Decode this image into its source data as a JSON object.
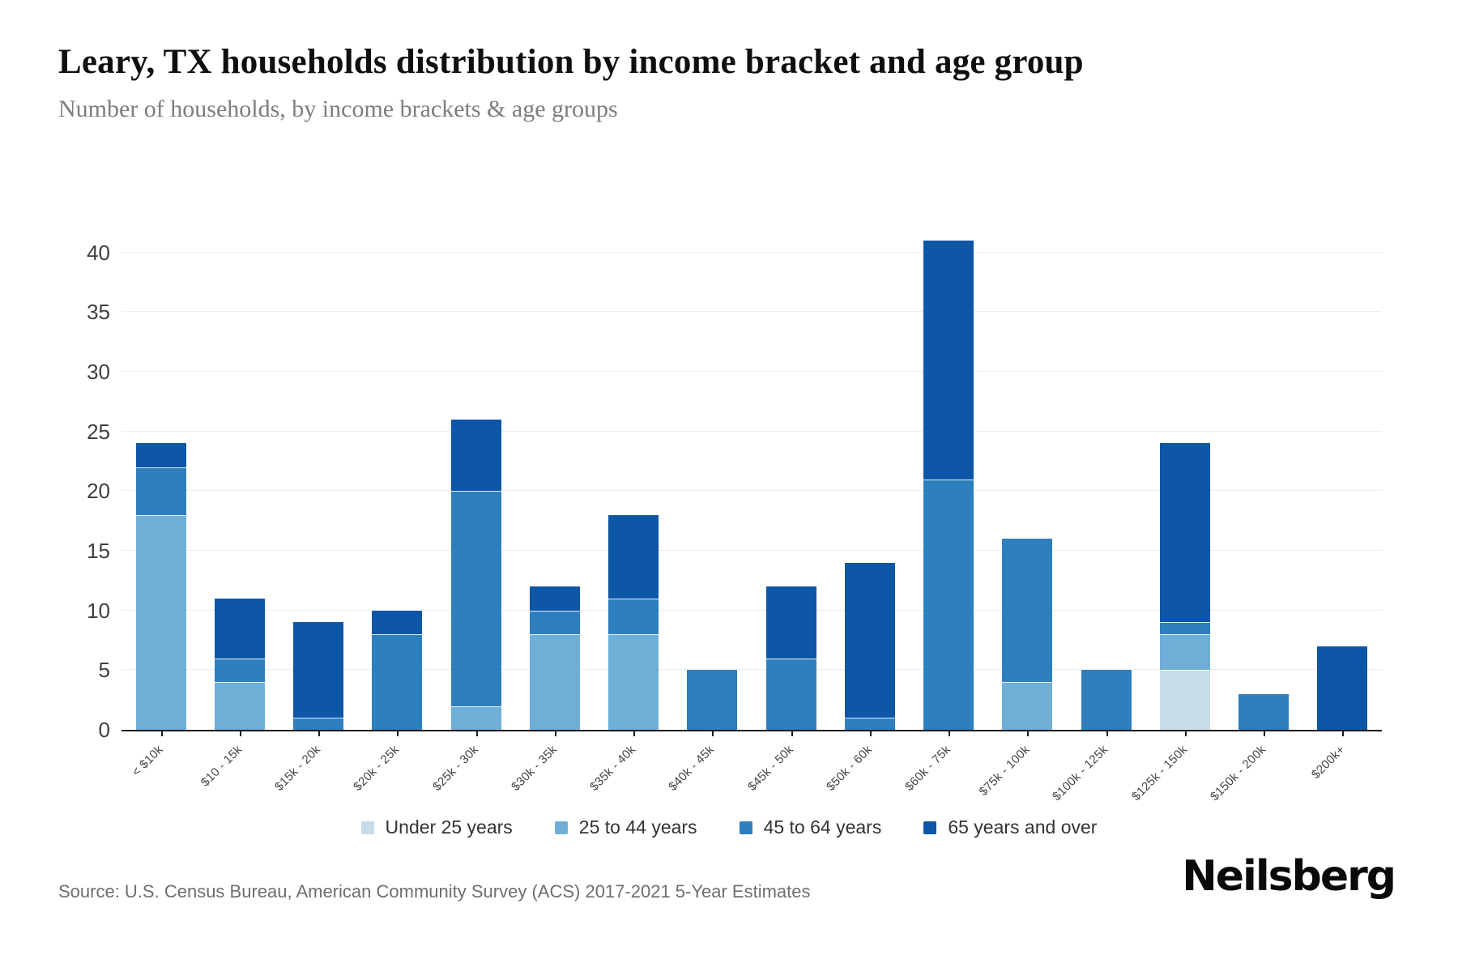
{
  "header": {
    "title": "Leary, TX households distribution by income bracket and age group",
    "subtitle": "Number of households, by income brackets & age groups"
  },
  "chart_data": {
    "type": "bar",
    "stacked": true,
    "title": "Leary, TX households distribution by income bracket and age group",
    "xlabel": "",
    "ylabel": "Number of households",
    "categories": [
      "< $10k",
      "$10 - 15k",
      "$15k - 20k",
      "$20k - 25k",
      "$25k - 30k",
      "$30k - 35k",
      "$35k - 40k",
      "$40k - 45k",
      "$45k - 50k",
      "$50k - 60k",
      "$60k - 75k",
      "$75k - 100k",
      "$100k - 125k",
      "$125k - 150k",
      "$150k - 200k",
      "$200k+"
    ],
    "series": [
      {
        "name": "Under 25 years",
        "color": "#c6dcea",
        "values": [
          0,
          0,
          0,
          0,
          0,
          0,
          0,
          0,
          0,
          0,
          0,
          0,
          0,
          5,
          0,
          0
        ]
      },
      {
        "name": "25 to 44 years",
        "color": "#6fafd7",
        "values": [
          18,
          4,
          0,
          0,
          2,
          8,
          8,
          0,
          0,
          0,
          0,
          4,
          0,
          3,
          0,
          0
        ]
      },
      {
        "name": "45 to 64 years",
        "color": "#2e7fbe",
        "values": [
          4,
          2,
          1,
          8,
          18,
          2,
          3,
          5,
          6,
          1,
          21,
          12,
          5,
          1,
          3,
          0
        ]
      },
      {
        "name": "65 years and over",
        "color": "#0e56a6",
        "values": [
          2,
          5,
          8,
          2,
          6,
          2,
          7,
          0,
          6,
          13,
          20,
          0,
          0,
          15,
          0,
          7
        ]
      }
    ],
    "totals": [
      24,
      11,
      9,
      10,
      26,
      12,
      18,
      5,
      12,
      14,
      41,
      16,
      5,
      24,
      3,
      7
    ],
    "y_ticks": [
      0,
      5,
      10,
      15,
      20,
      25,
      30,
      35,
      40
    ],
    "ylim": [
      0,
      43.5
    ],
    "grid": true,
    "legend_position": "bottom"
  },
  "footer": {
    "source": "Source: U.S. Census Bureau, American Community Survey (ACS) 2017-2021 5-Year Estimates",
    "brand": "Neilsberg"
  }
}
